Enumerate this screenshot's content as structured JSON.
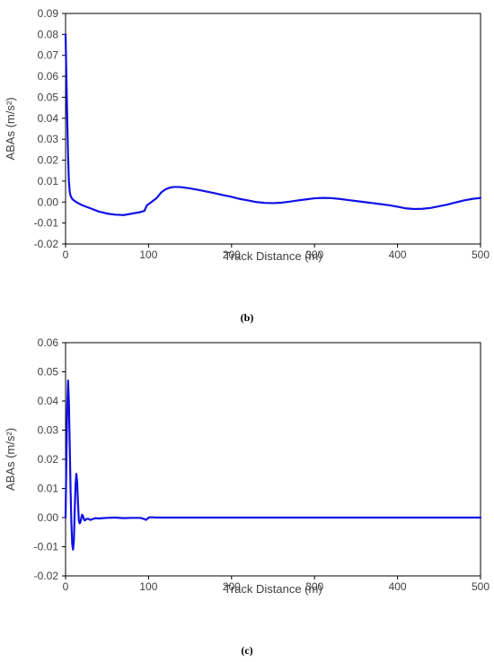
{
  "chart_data": [
    {
      "type": "line",
      "caption": "",
      "xlabel": "Track Distance (m)",
      "ylabel": "ABAs (m/s²)",
      "xlim": [
        0,
        500
      ],
      "ylim": [
        -0.02,
        0.09
      ],
      "x_ticks": [
        "0",
        "100",
        "200",
        "300",
        "400",
        "500"
      ],
      "y_ticks": [
        "-0.02",
        "-0.01",
        "0.00",
        "0.01",
        "0.02",
        "0.03",
        "0.04",
        "0.05",
        "0.06",
        "0.07",
        "0.08",
        "0.09"
      ],
      "grid": false,
      "series_color": "#1010e6",
      "series": [
        {
          "name": "",
          "x": [
            0,
            1,
            2,
            3,
            4,
            5,
            6,
            8,
            10,
            15,
            20,
            30,
            40,
            50,
            60,
            70,
            80,
            90,
            95,
            98,
            100,
            105,
            110,
            115,
            120,
            125,
            130,
            135,
            140,
            150,
            160,
            170,
            180,
            190,
            200,
            210,
            220,
            230,
            240,
            250,
            260,
            270,
            280,
            290,
            300,
            310,
            320,
            330,
            340,
            350,
            360,
            370,
            380,
            390,
            400,
            410,
            420,
            430,
            440,
            450,
            460,
            470,
            480,
            490,
            500
          ],
          "y": [
            0.08,
            0.06,
            0.04,
            0.022,
            0.01,
            0.005,
            0.003,
            0.0015,
            0.0008,
            -0.0005,
            -0.0015,
            -0.003,
            -0.0045,
            -0.0055,
            -0.006,
            -0.0062,
            -0.0055,
            -0.0048,
            -0.0042,
            -0.0015,
            -0.001,
            0.0005,
            0.002,
            0.0045,
            0.006,
            0.0068,
            0.0072,
            0.0072,
            0.0071,
            0.0065,
            0.0058,
            0.005,
            0.0042,
            0.0033,
            0.0025,
            0.0015,
            0.0008,
            0.0,
            -0.0004,
            -0.0005,
            -0.0003,
            0.0002,
            0.0008,
            0.0013,
            0.0018,
            0.002,
            0.0019,
            0.0015,
            0.001,
            0.0005,
            0.0,
            -0.0005,
            -0.001,
            -0.0015,
            -0.0022,
            -0.003,
            -0.0033,
            -0.0032,
            -0.0028,
            -0.002,
            -0.0012,
            -0.0002,
            0.0008,
            0.0015,
            0.002
          ]
        }
      ]
    },
    {
      "type": "line",
      "caption": "(b)",
      "xlabel": "Track Distance (m)",
      "ylabel": "ABAs (m/s²)",
      "xlim": [
        0,
        500
      ],
      "ylim": [
        -0.02,
        0.06
      ],
      "x_ticks": [
        "0",
        "100",
        "200",
        "300",
        "400",
        "500"
      ],
      "y_ticks": [
        "-0.02",
        "-0.01",
        "0.00",
        "0.01",
        "0.02",
        "0.03",
        "0.04",
        "0.05",
        "0.06"
      ],
      "grid": false,
      "series_color": "#1010e6",
      "series": [
        {
          "name": "",
          "x": [
            0,
            1,
            2,
            3,
            4,
            5,
            6,
            7,
            8,
            9,
            10,
            11,
            12,
            13,
            14,
            15,
            16,
            17,
            18,
            19,
            20,
            21,
            22,
            23,
            24,
            25,
            27,
            30,
            33,
            36,
            40,
            45,
            50,
            60,
            70,
            80,
            90,
            95,
            97,
            99,
            101,
            105,
            110,
            150,
            200,
            250,
            300,
            350,
            400,
            450,
            500
          ],
          "y": [
            0.0,
            0.02,
            0.038,
            0.047,
            0.04,
            0.025,
            0.01,
            -0.002,
            -0.009,
            -0.011,
            -0.008,
            0.002,
            0.011,
            0.015,
            0.012,
            0.005,
            -0.001,
            -0.002,
            -0.0015,
            0.0,
            0.001,
            0.0005,
            -0.0005,
            -0.001,
            -0.0008,
            -0.0005,
            -0.0004,
            -0.0008,
            -0.0005,
            -0.0002,
            -0.0003,
            -0.0002,
            -0.0001,
            0.0,
            -0.0002,
            -0.0001,
            -0.0001,
            -0.0005,
            -0.0008,
            -0.0003,
            0.0001,
            0.0001,
            0.0,
            0.0,
            0.0,
            0.0,
            0.0,
            0.0,
            0.0,
            0.0,
            0.0
          ]
        }
      ]
    },
    {
      "type": "caption",
      "caption": "(c)"
    }
  ]
}
